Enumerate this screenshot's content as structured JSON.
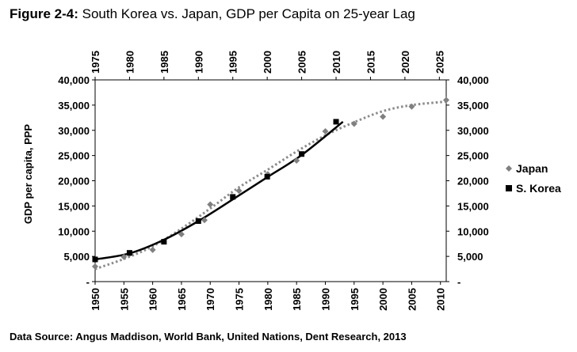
{
  "figure": {
    "label": "Figure 2-4:",
    "title": "South Korea vs. Japan, GDP per Capita on 25-year Lag",
    "source": "Data Source: Angus Maddison, World Bank, United Nations, Dent Research, 2013"
  },
  "chart_data": {
    "type": "scatter",
    "title": "South Korea vs. Japan, GDP per Capita on 25-year Lag",
    "ylabel": "GDP per capita, PPP",
    "xlabel": "",
    "x_bottom": {
      "min": 1950,
      "max": 2011,
      "ticks": [
        1950,
        1955,
        1960,
        1965,
        1970,
        1975,
        1980,
        1985,
        1990,
        1995,
        2000,
        2005,
        2010
      ]
    },
    "x_top": {
      "min": 1975,
      "max": 2026,
      "ticks": [
        1975,
        1980,
        1985,
        1990,
        1995,
        2000,
        2005,
        2010,
        2015,
        2020,
        2025
      ]
    },
    "ylim": [
      0,
      40000
    ],
    "y_ticks": [
      {
        "value": 0,
        "label": "-"
      },
      {
        "value": 5000,
        "label": "5,000"
      },
      {
        "value": 10000,
        "label": "10,000"
      },
      {
        "value": 15000,
        "label": "15,000"
      },
      {
        "value": 20000,
        "label": "20,000"
      },
      {
        "value": 25000,
        "label": "25,000"
      },
      {
        "value": 30000,
        "label": "30,000"
      },
      {
        "value": 35000,
        "label": "35,000"
      },
      {
        "value": 40000,
        "label": "40,000"
      }
    ],
    "legend_position": "right",
    "series": [
      {
        "name": "Japan",
        "axis": "bottom",
        "marker": "diamond",
        "color": "#808080",
        "trendline": "dotted",
        "points": [
          [
            1950,
            3000
          ],
          [
            1955,
            4900
          ],
          [
            1956,
            5500
          ],
          [
            1960,
            6300
          ],
          [
            1965,
            9400
          ],
          [
            1969,
            12200
          ],
          [
            1970,
            15300
          ],
          [
            1975,
            18000
          ],
          [
            1980,
            21300
          ],
          [
            1985,
            24000
          ],
          [
            1990,
            29800
          ],
          [
            1995,
            31300
          ],
          [
            2000,
            32700
          ],
          [
            2005,
            34700
          ],
          [
            2011,
            36000
          ]
        ]
      },
      {
        "name": "S. Korea",
        "axis": "top",
        "marker": "square",
        "color": "#000000",
        "trendline": "solid",
        "points": [
          [
            1975,
            4400
          ],
          [
            1980,
            5700
          ],
          [
            1985,
            7900
          ],
          [
            1990,
            12000
          ],
          [
            1995,
            16800
          ],
          [
            2000,
            20800
          ],
          [
            2005,
            25300
          ],
          [
            2010,
            31700
          ]
        ]
      }
    ],
    "trend": {
      "japan_x": [
        1950,
        1955,
        1960,
        1965,
        1970,
        1975,
        1980,
        1985,
        1990,
        1995,
        2000,
        2005,
        2011
      ],
      "japan_y": [
        2500,
        4500,
        7000,
        10500,
        14500,
        18700,
        22200,
        25800,
        29000,
        31600,
        33800,
        35000,
        35700
      ],
      "korea_x": [
        1975,
        1980,
        1985,
        1990,
        1995,
        2000,
        2005,
        2011
      ],
      "korea_y": [
        4400,
        5600,
        8300,
        12000,
        16300,
        20700,
        25100,
        31700
      ]
    }
  }
}
